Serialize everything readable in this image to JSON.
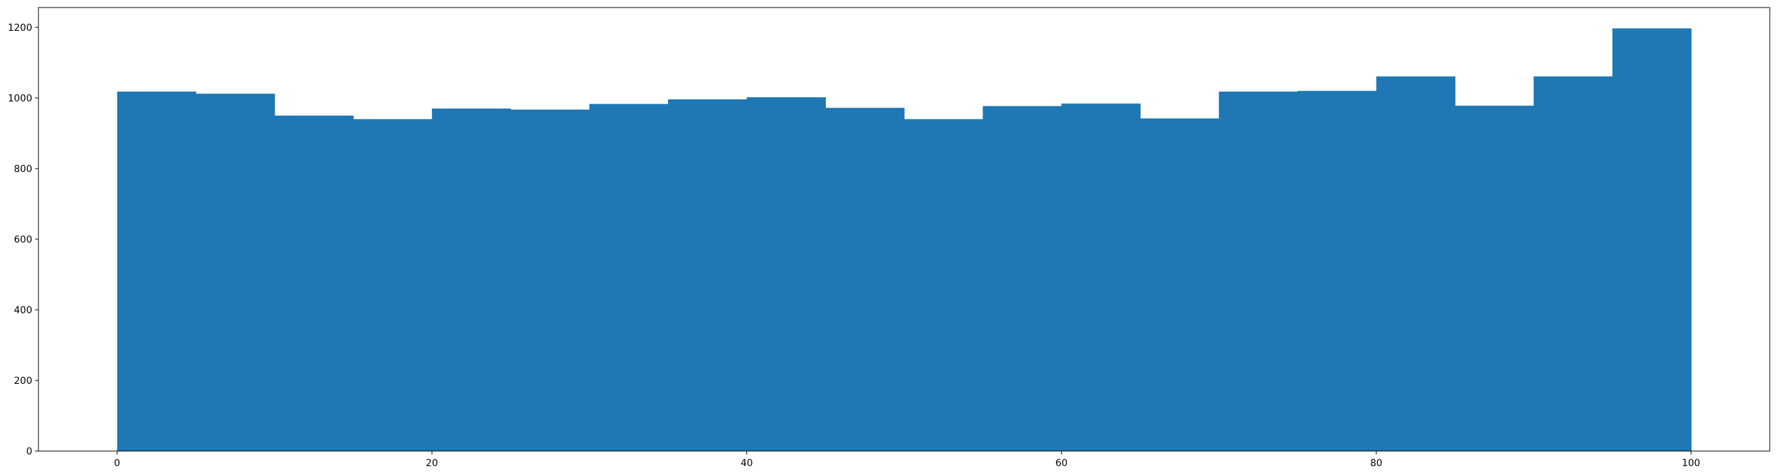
{
  "chart_data": {
    "type": "bar",
    "subtype": "histogram",
    "title": "",
    "xlabel": "",
    "ylabel": "",
    "bin_edges": [
      0,
      5,
      10,
      15,
      20,
      25,
      30,
      35,
      40,
      45,
      50,
      55,
      60,
      65,
      70,
      75,
      80,
      85,
      90,
      95,
      100
    ],
    "values": [
      1018,
      1012,
      950,
      940,
      970,
      967,
      983,
      996,
      1002,
      972,
      940,
      977,
      984,
      942,
      1018,
      1020,
      1061,
      978,
      1061,
      1197
    ],
    "xlim": [
      -5,
      105
    ],
    "ylim": [
      0,
      1256
    ],
    "xticks": [
      "0",
      "20",
      "40",
      "60",
      "80",
      "100"
    ],
    "yticks": [
      "0",
      "200",
      "400",
      "600",
      "800",
      "1000",
      "1200"
    ],
    "bar_color": "#1f77b4",
    "grid": false,
    "legend": "none"
  }
}
